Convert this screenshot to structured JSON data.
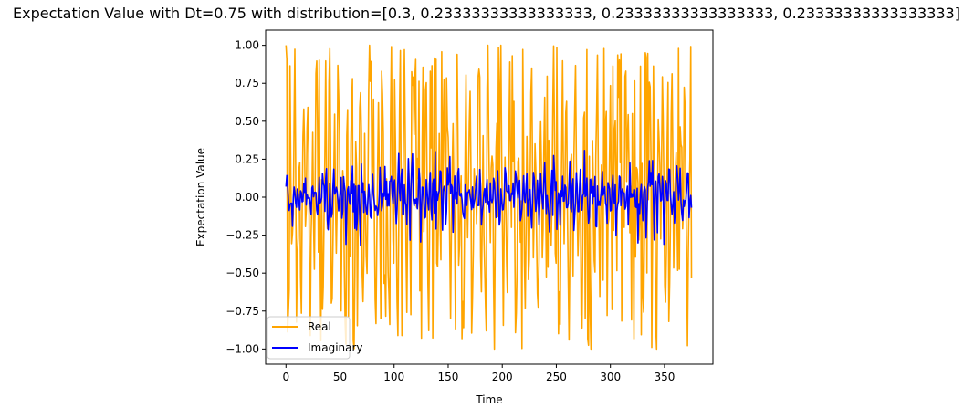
{
  "chart_data": {
    "type": "line",
    "title": "Expectation Value with Dt=0.75 with distribution=[0.3, 0.23333333333333333, 0.23333333333333333, 0.23333333333333333]",
    "xlabel": "Time",
    "ylabel": "Expectation Value",
    "xlim": [
      -18.8,
      394.8
    ],
    "ylim": [
      -1.1,
      1.1
    ],
    "xticks": [
      0,
      50,
      100,
      150,
      200,
      250,
      300,
      350
    ],
    "xtick_labels": [
      "0",
      "50",
      "100",
      "150",
      "200",
      "250",
      "300",
      "350"
    ],
    "yticks": [
      -1.0,
      -0.75,
      -0.5,
      -0.25,
      0.0,
      0.25,
      0.5,
      0.75,
      1.0
    ],
    "ytick_labels": [
      "−1.00",
      "−0.75",
      "−0.50",
      "−0.25",
      "0.00",
      "0.25",
      "0.50",
      "0.75",
      "1.00"
    ],
    "grid": false,
    "legend_position": "lower-left",
    "series": [
      {
        "name": "Real",
        "color": "#ffa500",
        "x_start": 0,
        "x_step": 0.75,
        "points": 501,
        "y_first": 1.0,
        "y_range": [
          -1.0,
          1.0
        ]
      },
      {
        "name": "Imaginary",
        "color": "#0000ff",
        "x_start": 0,
        "x_step": 0.75,
        "points": 501,
        "y_first": 0.07,
        "y_range": [
          -0.34,
          0.31
        ]
      }
    ]
  }
}
